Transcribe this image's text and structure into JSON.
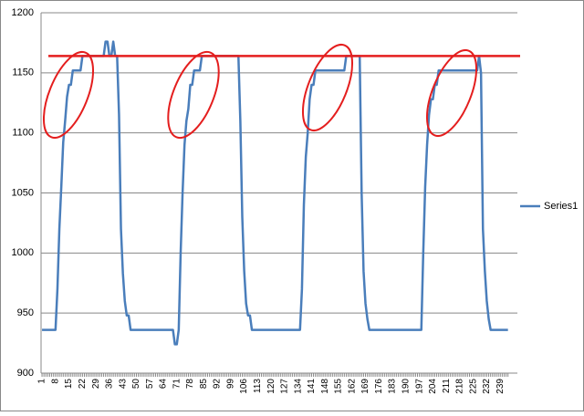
{
  "chart_data": {
    "type": "line",
    "categories": [
      "1",
      null,
      null,
      null,
      null,
      null,
      null,
      "8",
      null,
      null,
      null,
      null,
      null,
      null,
      "15",
      null,
      null,
      null,
      null,
      null,
      null,
      "22",
      null,
      null,
      null,
      null,
      null,
      null,
      "29",
      null,
      null,
      null,
      null,
      null,
      null,
      "36",
      null,
      null,
      null,
      null,
      null,
      null,
      "43",
      null,
      null,
      null,
      null,
      null,
      null,
      "50",
      null,
      null,
      null,
      null,
      null,
      null,
      "57",
      null,
      null,
      null,
      null,
      null,
      null,
      "64",
      null,
      null,
      null,
      null,
      null,
      null,
      "71",
      null,
      null,
      null,
      null,
      null,
      null,
      "78",
      null,
      null,
      null,
      null,
      null,
      null,
      "85",
      null,
      null,
      null,
      null,
      null,
      null,
      "92",
      null,
      null,
      null,
      null,
      null,
      null,
      "99",
      null,
      null,
      null,
      null,
      null,
      null,
      "106",
      null,
      null,
      null,
      null,
      null,
      null,
      "113",
      null,
      null,
      null,
      null,
      null,
      null,
      "120",
      null,
      null,
      null,
      null,
      null,
      null,
      "127",
      null,
      null,
      null,
      null,
      null,
      null,
      "134",
      null,
      null,
      null,
      null,
      null,
      null,
      "141",
      null,
      null,
      null,
      null,
      null,
      null,
      "148",
      null,
      null,
      null,
      null,
      null,
      null,
      "155",
      null,
      null,
      null,
      null,
      null,
      null,
      "162",
      null,
      null,
      null,
      null,
      null,
      null,
      "169",
      null,
      null,
      null,
      null,
      null,
      null,
      "176",
      null,
      null,
      null,
      null,
      null,
      null,
      "183",
      null,
      null,
      null,
      null,
      null,
      null,
      "190",
      null,
      null,
      null,
      null,
      null,
      null,
      "197",
      null,
      null,
      null,
      null,
      null,
      null,
      "204",
      null,
      null,
      null,
      null,
      null,
      null,
      "211",
      null,
      null,
      null,
      null,
      null,
      null,
      "218",
      null,
      null,
      null,
      null,
      null,
      null,
      "225",
      null,
      null,
      null,
      null,
      null,
      null,
      "232",
      null,
      null,
      null,
      null,
      null,
      null,
      "239",
      null,
      null,
      null,
      null
    ],
    "series": [
      {
        "name": "Series1",
        "color": "#4a7ebb",
        "values": [
          936,
          936,
          936,
          936,
          936,
          936,
          936,
          936,
          970,
          1020,
          1055,
          1092,
          1110,
          1130,
          1140,
          1140,
          1152,
          1152,
          1152,
          1152,
          1152,
          1164,
          1164,
          1164,
          1164,
          1164,
          1164,
          1164,
          1164,
          1164,
          1164,
          1164,
          1164,
          1176,
          1176,
          1164,
          1164,
          1176,
          1164,
          1164,
          1115,
          1020,
          983,
          960,
          948,
          948,
          936,
          936,
          936,
          936,
          936,
          936,
          936,
          936,
          936,
          936,
          936,
          936,
          936,
          936,
          936,
          936,
          936,
          936,
          936,
          936,
          936,
          936,
          936,
          924,
          924,
          936,
          1000,
          1050,
          1090,
          1110,
          1120,
          1140,
          1140,
          1152,
          1152,
          1152,
          1152,
          1164,
          1164,
          1164,
          1164,
          1164,
          1164,
          1164,
          1164,
          1164,
          1164,
          1164,
          1164,
          1164,
          1164,
          1164,
          1164,
          1164,
          1164,
          1164,
          1164,
          1110,
          1030,
          985,
          958,
          948,
          948,
          936,
          936,
          936,
          936,
          936,
          936,
          936,
          936,
          936,
          936,
          936,
          936,
          936,
          936,
          936,
          936,
          936,
          936,
          936,
          936,
          936,
          936,
          936,
          936,
          936,
          936,
          970,
          1040,
          1080,
          1100,
          1128,
          1140,
          1140,
          1152,
          1152,
          1152,
          1152,
          1152,
          1152,
          1152,
          1152,
          1152,
          1152,
          1152,
          1152,
          1152,
          1152,
          1152,
          1152,
          1164,
          1164,
          1164,
          1164,
          1164,
          1164,
          1164,
          1164,
          1050,
          985,
          958,
          945,
          936,
          936,
          936,
          936,
          936,
          936,
          936,
          936,
          936,
          936,
          936,
          936,
          936,
          936,
          936,
          936,
          936,
          936,
          936,
          936,
          936,
          936,
          936,
          936,
          936,
          936,
          936,
          936,
          1000,
          1055,
          1090,
          1115,
          1128,
          1128,
          1140,
          1140,
          1152,
          1152,
          1152,
          1152,
          1152,
          1152,
          1152,
          1152,
          1152,
          1152,
          1152,
          1152,
          1152,
          1152,
          1152,
          1152,
          1152,
          1152,
          1152,
          1152,
          1152,
          1164,
          1150,
          1020,
          985,
          960,
          945,
          936,
          936,
          936,
          936,
          936,
          936,
          936,
          936,
          936,
          936
        ]
      }
    ],
    "ylim": [
      900,
      1200
    ],
    "yticks": [
      900,
      950,
      1000,
      1050,
      1100,
      1150,
      1200
    ],
    "grid": true,
    "legend": "right",
    "reference_line": {
      "value": 1164,
      "color": "#e41e1e"
    }
  }
}
